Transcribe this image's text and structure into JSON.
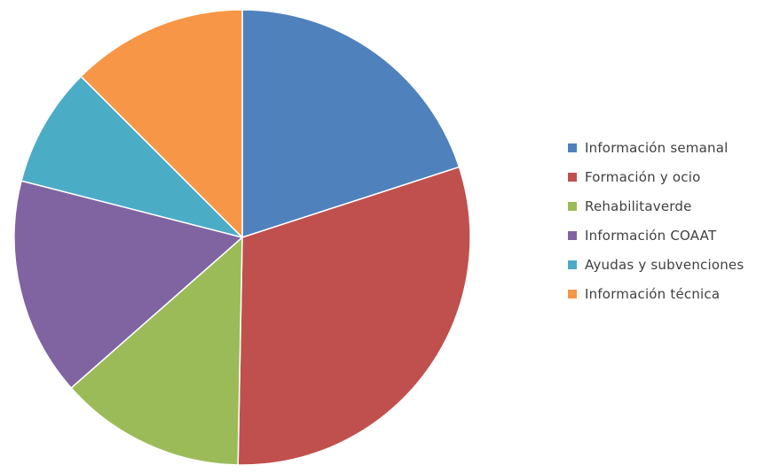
{
  "chart_data": {
    "type": "pie",
    "categories": [
      "Información semanal",
      "Formación y ocio",
      "Rehabilitaverde",
      "Información COAAT",
      "Ayudas y subvenciones",
      "Información técnica"
    ],
    "values": [
      20.0,
      30.3,
      13.2,
      15.5,
      8.5,
      12.5
    ],
    "colors": [
      "#4F81BD",
      "#C0504D",
      "#9BBB59",
      "#8064A2",
      "#4BACC6",
      "#F79646"
    ],
    "start_angle_deg": 0,
    "direction": "clockwise",
    "legend_position": "right",
    "title": ""
  }
}
